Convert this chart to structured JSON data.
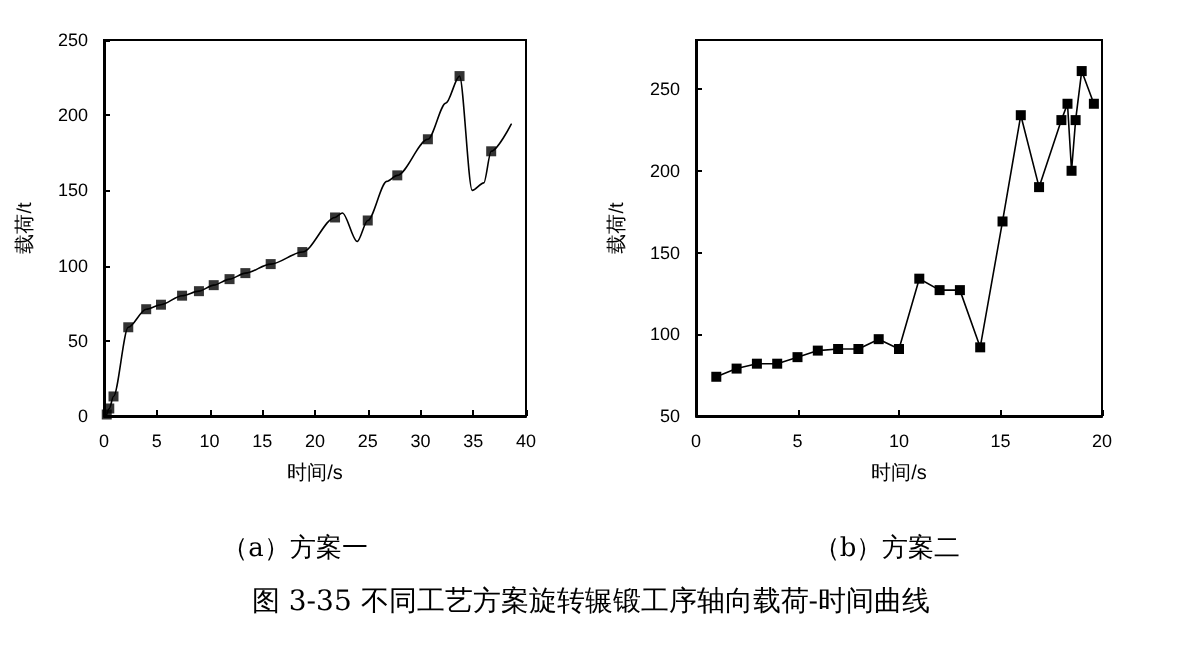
{
  "chart_data": [
    {
      "type": "line",
      "title": "（a）方案一",
      "xlabel": "时间/s",
      "ylabel": "载荷/t",
      "annotations": [
        "图 3-35  不同工艺方案旋转辗锻工序轴向载荷-时间曲线"
      ],
      "xlim": [
        0,
        40
      ],
      "xticks": [
        0,
        5,
        10,
        15,
        20,
        25,
        30,
        35,
        40
      ],
      "ylim": [
        0,
        250
      ],
      "yticks": [
        0,
        50,
        100,
        150,
        200,
        250
      ],
      "grid": false,
      "series": [
        {
          "marker": "none",
          "color": "#000000",
          "x": [
            0.26,
            0.5,
            0.9,
            2.3,
            4,
            5.4,
            7.4,
            9,
            10.4,
            11.9,
            13.4,
            15.8,
            18.8,
            21.9,
            22.6,
            24,
            25,
            26.8,
            27.8,
            30.7,
            32.4,
            33.7,
            34.9,
            36,
            36.7,
            38.6
          ],
          "values": [
            1,
            5,
            13,
            59,
            71,
            74,
            80,
            83,
            87,
            91,
            95,
            101,
            109,
            132,
            135,
            116,
            130,
            156,
            160,
            184,
            208,
            226,
            150,
            155,
            176,
            194
          ]
        },
        {
          "type": "scatter",
          "marker": "square",
          "color": "#000000",
          "x": [
            0.26,
            0.5,
            0.9,
            2.3,
            4,
            5.4,
            7.4,
            9,
            10.4,
            11.9,
            13.4,
            15.8,
            18.8,
            21.9,
            25,
            27.8,
            30.7,
            33.7,
            36.7
          ],
          "values": [
            1,
            5,
            13,
            59,
            71,
            74,
            80,
            83,
            87,
            91,
            95,
            101,
            109,
            132,
            130,
            160,
            184,
            226,
            176
          ]
        }
      ]
    },
    {
      "type": "line",
      "title": "（b）方案二",
      "xlabel": "时间/s",
      "ylabel": "载荷/t",
      "xlim": [
        0,
        20
      ],
      "xticks": [
        0,
        5,
        10,
        15,
        20
      ],
      "ylim": [
        50,
        280
      ],
      "yticks": [
        50,
        100,
        150,
        200,
        250
      ],
      "grid": false,
      "series": [
        {
          "marker": "square",
          "line_style": "solid",
          "color": "#000000",
          "x": [
            1,
            2,
            3,
            4,
            5,
            6,
            7,
            8,
            9,
            10,
            11,
            12,
            13,
            14,
            15.1,
            16,
            16.9,
            18,
            18.3,
            18.5,
            18.7,
            19,
            19.6
          ],
          "values": [
            74,
            79,
            82,
            82,
            86,
            90,
            91,
            91,
            97,
            91,
            134,
            127,
            127,
            92,
            169,
            234,
            190,
            231,
            241,
            200,
            231,
            261,
            241
          ]
        }
      ]
    }
  ]
}
